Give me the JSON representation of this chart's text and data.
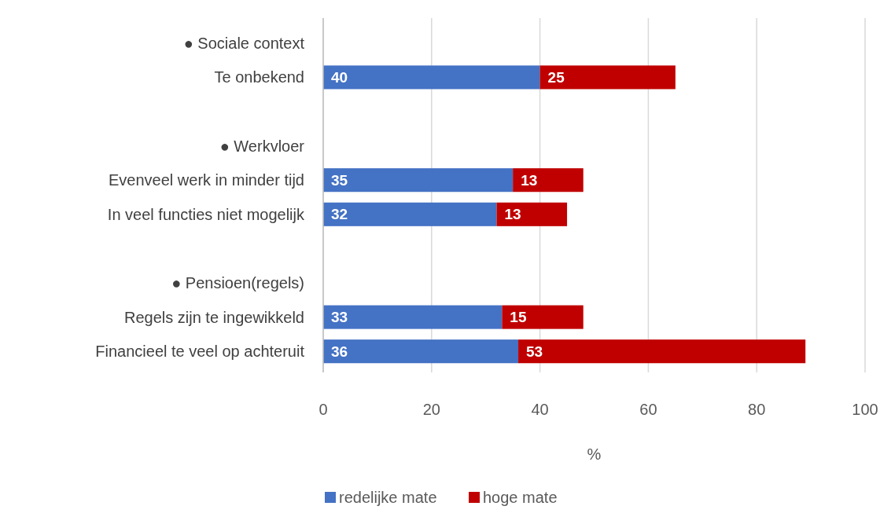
{
  "chart_data": {
    "type": "bar",
    "orientation": "horizontal",
    "stacked": true,
    "categories": [
      "● Sociale context",
      "Te onbekend",
      null,
      "● Werkvloer",
      "Evenveel werk in minder tijd",
      "In veel functies niet mogelijk",
      null,
      "● Pensioen(regels)",
      "Regels zijn te ingewikkeld",
      "Financieel te veel op achteruit"
    ],
    "series": [
      {
        "name": "redelijke mate",
        "color": "#4472c4",
        "values": [
          null,
          40,
          null,
          null,
          35,
          32,
          null,
          null,
          33,
          36
        ]
      },
      {
        "name": "hoge mate",
        "color": "#c00000",
        "values": [
          null,
          25,
          null,
          null,
          13,
          13,
          null,
          null,
          15,
          53
        ]
      }
    ],
    "xlim": [
      0,
      100
    ],
    "xticks": [
      0,
      20,
      40,
      60,
      80,
      100
    ],
    "xlabel": "%",
    "grid": "x",
    "data_labels": true,
    "legend": "bottom"
  }
}
